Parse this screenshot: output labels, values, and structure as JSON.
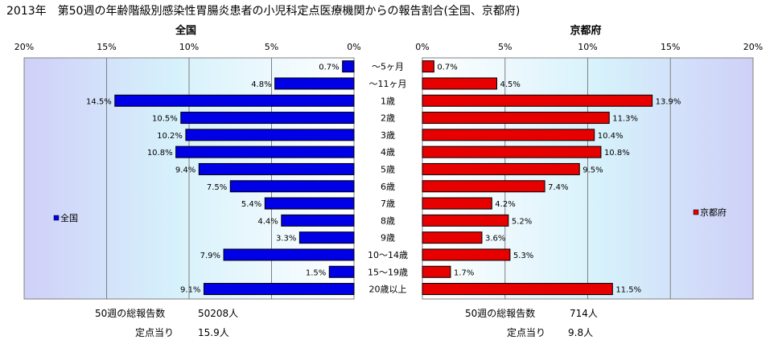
{
  "title": "2013年　第50週の年齢階級別感染性胃腸炎患者の小児科定点医療機関からの報告割合(全国、京都府)",
  "colors": {
    "national": "#0000e6",
    "kyoto": "#e60000",
    "edge": "#000000"
  },
  "chart_data": [
    {
      "type": "bar",
      "orientation": "horizontal",
      "direction": "leftward",
      "title": "全国",
      "categories": [
        "～5ヶ月",
        "～11ヶ月",
        "1歳",
        "2歳",
        "3歳",
        "4歳",
        "5歳",
        "6歳",
        "7歳",
        "8歳",
        "9歳",
        "10～14歳",
        "15～19歳",
        "20歳以上"
      ],
      "series": [
        {
          "name": "全国",
          "values": [
            0.7,
            4.8,
            14.5,
            10.5,
            10.2,
            10.8,
            9.4,
            7.5,
            5.4,
            4.4,
            3.3,
            7.9,
            1.5,
            9.1
          ]
        }
      ],
      "data_labels": [
        "0.7%",
        "4.8%",
        "14.5%",
        "10.5%",
        "10.2%",
        "10.8%",
        "9.4%",
        "7.5%",
        "5.4%",
        "4.4%",
        "3.3%",
        "7.9%",
        "1.5%",
        "9.1%"
      ],
      "xlim": [
        0,
        20
      ],
      "ticks": [
        "0%",
        "5%",
        "10%",
        "15%",
        "20%"
      ],
      "legend": "left",
      "footer": {
        "total_label": "50週の総報告数",
        "total_value": "50208人",
        "per_label": "定点当り",
        "per_value": "15.9人"
      }
    },
    {
      "type": "bar",
      "orientation": "horizontal",
      "direction": "rightward",
      "title": "京都府",
      "categories": [
        "～5ヶ月",
        "～11ヶ月",
        "1歳",
        "2歳",
        "3歳",
        "4歳",
        "5歳",
        "6歳",
        "7歳",
        "8歳",
        "9歳",
        "10～14歳",
        "15～19歳",
        "20歳以上"
      ],
      "series": [
        {
          "name": "京都府",
          "values": [
            0.7,
            4.5,
            13.9,
            11.3,
            10.4,
            10.8,
            9.5,
            7.4,
            4.2,
            5.2,
            3.6,
            5.3,
            1.7,
            11.5
          ]
        }
      ],
      "data_labels": [
        "0.7%",
        "4.5%",
        "13.9%",
        "11.3%",
        "10.4%",
        "10.8%",
        "9.5%",
        "7.4%",
        "4.2%",
        "5.2%",
        "3.6%",
        "5.3%",
        "1.7%",
        "11.5%"
      ],
      "xlim": [
        0,
        20
      ],
      "ticks": [
        "0%",
        "5%",
        "10%",
        "15%",
        "20%"
      ],
      "legend": "right",
      "footer": {
        "total_label": "50週の総報告数",
        "total_value": "714人",
        "per_label": "定点当り",
        "per_value": "9.8人"
      }
    }
  ]
}
